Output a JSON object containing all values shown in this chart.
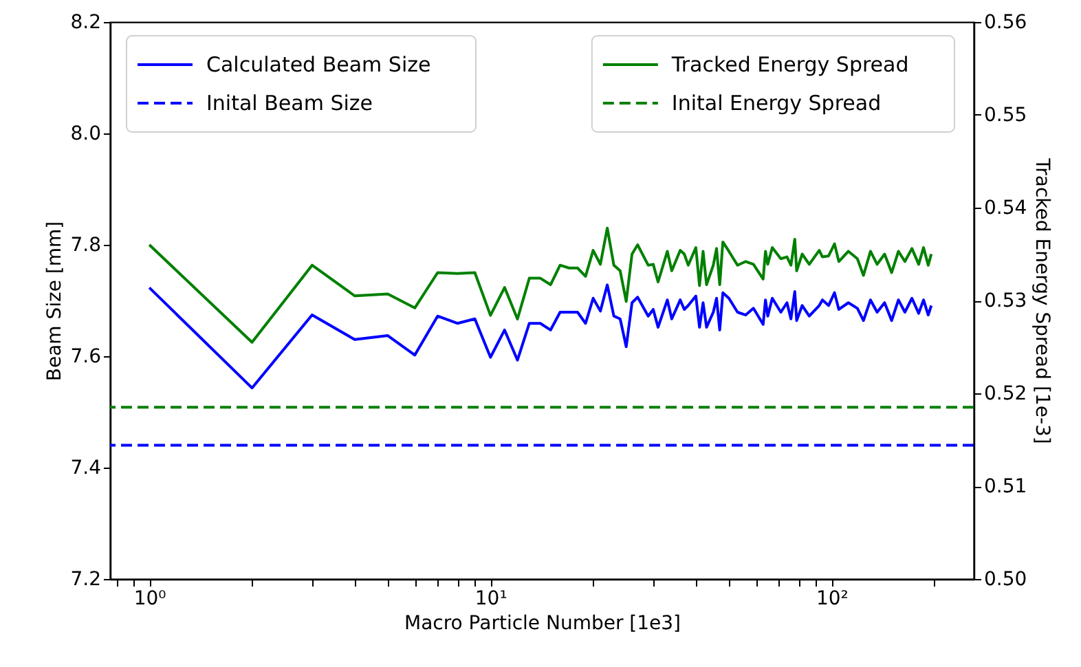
{
  "chart_data": {
    "type": "line",
    "xlabel": "Macro Particle Number [1e3]",
    "ylabel": "Beam Size [mm]",
    "y2label": "Tracked Energy Spread [1e-3]",
    "x": [
      1,
      2,
      3,
      4,
      5,
      6,
      7,
      8,
      9,
      10,
      11,
      12,
      13,
      14,
      15,
      16,
      17,
      18,
      19,
      20,
      21,
      22,
      23,
      24,
      25,
      26,
      27,
      29,
      30,
      31,
      33,
      34,
      36,
      37,
      38,
      40,
      41,
      42,
      43,
      45,
      46,
      47,
      48,
      50,
      53,
      56,
      59,
      63,
      64,
      65,
      67,
      71,
      74,
      76,
      78,
      79,
      82,
      86,
      92,
      94,
      98,
      102,
      105,
      112,
      119,
      124,
      130,
      136,
      143,
      150,
      157,
      164,
      172,
      180,
      186,
      192,
      196
    ],
    "series": [
      {
        "name": "Calculated Beam Size",
        "color": "#0000ff",
        "axis": "y",
        "line_style": "solid",
        "values": [
          7.723,
          7.543,
          7.674,
          7.63,
          7.637,
          7.602,
          7.672,
          7.659,
          7.667,
          7.598,
          7.647,
          7.593,
          7.659,
          7.659,
          7.647,
          7.679,
          7.679,
          7.679,
          7.659,
          7.704,
          7.681,
          7.728,
          7.672,
          7.667,
          7.617,
          7.696,
          7.706,
          7.672,
          7.684,
          7.652,
          7.701,
          7.667,
          7.701,
          7.684,
          7.691,
          7.708,
          7.652,
          7.696,
          7.652,
          7.679,
          7.704,
          7.647,
          7.714,
          7.704,
          7.679,
          7.674,
          7.686,
          7.657,
          7.701,
          7.672,
          7.704,
          7.679,
          7.696,
          7.667,
          7.716,
          7.664,
          7.691,
          7.672,
          7.691,
          7.701,
          7.691,
          7.714,
          7.684,
          7.696,
          7.686,
          7.664,
          7.701,
          7.679,
          7.696,
          7.664,
          7.701,
          7.679,
          7.704,
          7.677,
          7.701,
          7.674,
          7.691
        ]
      },
      {
        "name": "Tracked Energy Spread",
        "color": "#008000",
        "axis": "y2",
        "line_style": "solid",
        "values": [
          0.536,
          0.5255,
          0.5338,
          0.5305,
          0.5307,
          0.5292,
          0.533,
          0.5329,
          0.533,
          0.5284,
          0.5314,
          0.528,
          0.5324,
          0.5324,
          0.5317,
          0.5338,
          0.5335,
          0.5335,
          0.5326,
          0.5354,
          0.5339,
          0.5378,
          0.5338,
          0.5332,
          0.5299,
          0.535,
          0.536,
          0.5338,
          0.5339,
          0.532,
          0.5353,
          0.5332,
          0.5354,
          0.535,
          0.5338,
          0.5357,
          0.5316,
          0.5353,
          0.5317,
          0.5338,
          0.5356,
          0.5317,
          0.5363,
          0.5353,
          0.5338,
          0.5342,
          0.5339,
          0.5323,
          0.5353,
          0.5339,
          0.5357,
          0.5345,
          0.5347,
          0.5338,
          0.5366,
          0.5332,
          0.535,
          0.5339,
          0.5354,
          0.5347,
          0.5348,
          0.5361,
          0.5342,
          0.5353,
          0.5345,
          0.5327,
          0.5353,
          0.5339,
          0.535,
          0.533,
          0.5353,
          0.5342,
          0.5356,
          0.5339,
          0.5357,
          0.5338,
          0.535
        ]
      }
    ],
    "ref_lines": [
      {
        "axis": "y",
        "value": 7.44,
        "label": "Inital Beam Size",
        "color": "#0000ff",
        "line_style": "dashed"
      },
      {
        "axis": "y2",
        "value": 0.5185,
        "label": "Inital Energy Spread",
        "color": "#008000",
        "line_style": "dashed"
      }
    ],
    "log": "x",
    "xlim": [
      0.767,
      261
    ],
    "xticks": [
      {
        "value": 1,
        "label": "10⁰"
      },
      {
        "value": 10,
        "label": "10¹"
      },
      {
        "value": 100,
        "label": "10²"
      },
      {
        "value": 0.8,
        "label": null
      },
      {
        "value": 0.9,
        "label": null
      },
      {
        "value": 2,
        "label": null
      },
      {
        "value": 3,
        "label": null
      },
      {
        "value": 4,
        "label": null
      },
      {
        "value": 5,
        "label": null
      },
      {
        "value": 6,
        "label": null
      },
      {
        "value": 7,
        "label": null
      },
      {
        "value": 8,
        "label": null
      },
      {
        "value": 9,
        "label": null
      },
      {
        "value": 20,
        "label": null
      },
      {
        "value": 30,
        "label": null
      },
      {
        "value": 40,
        "label": null
      },
      {
        "value": 50,
        "label": null
      },
      {
        "value": 60,
        "label": null
      },
      {
        "value": 70,
        "label": null
      },
      {
        "value": 80,
        "label": null
      },
      {
        "value": 90,
        "label": null
      },
      {
        "value": 200,
        "label": null
      }
    ],
    "ylim": [
      7.2,
      8.2
    ],
    "yticks": [
      7.2,
      7.4,
      7.6,
      7.8,
      {
        "value": 8,
        "label": "8.0"
      },
      8.2
    ],
    "y2lim": [
      0.5,
      0.56
    ],
    "y2ticks": [
      {
        "value": 0.5,
        "label": "0.50"
      },
      {
        "value": 0.51,
        "label": "0.51"
      },
      {
        "value": 0.52,
        "label": "0.52"
      },
      {
        "value": 0.53,
        "label": "0.53"
      },
      {
        "value": 0.54,
        "label": "0.54"
      },
      {
        "value": 0.55,
        "label": "0.55"
      },
      {
        "value": 0.56,
        "label": "0.56"
      }
    ],
    "grid": false,
    "legend": "top",
    "marker": "none"
  }
}
